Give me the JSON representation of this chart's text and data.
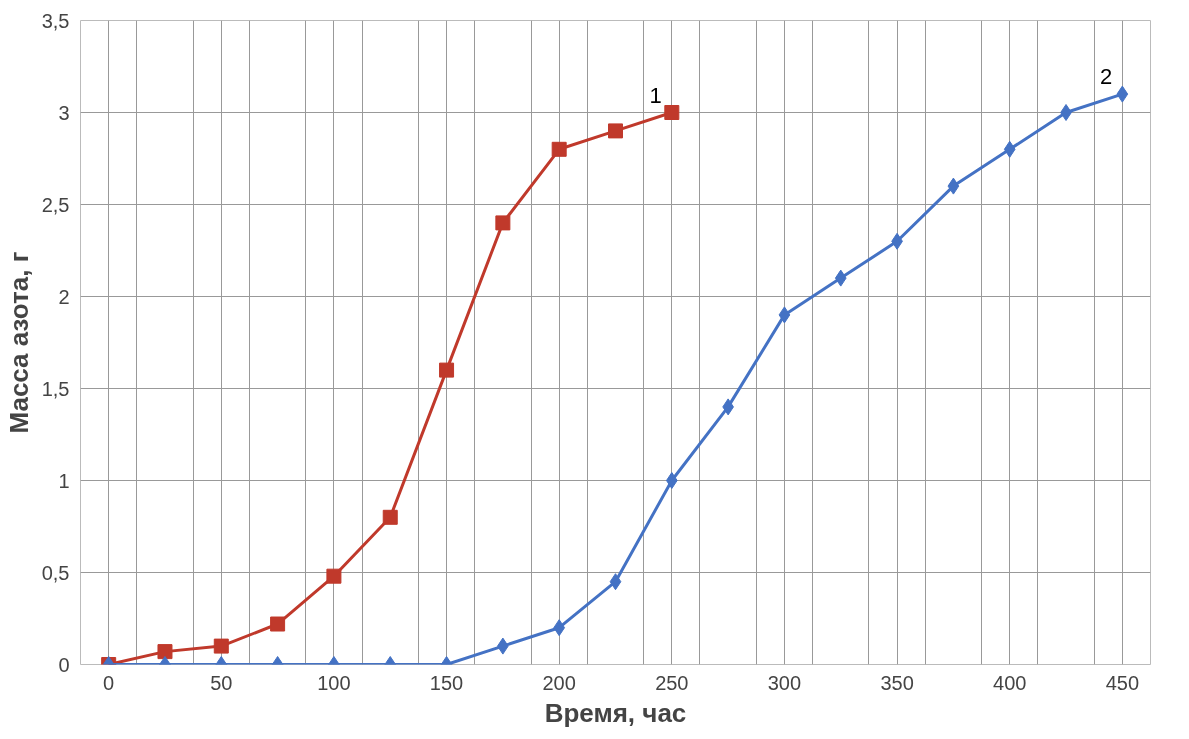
{
  "chart_data": {
    "type": "line",
    "xlabel": "Время, час",
    "ylabel": "Масса азота, г",
    "xlim": [
      -12.5,
      462.5
    ],
    "ylim": [
      0,
      3.5
    ],
    "xticks": [
      0,
      50,
      100,
      150,
      200,
      250,
      300,
      350,
      400,
      450,
      {
        "value": -12.5,
        "label": null
      },
      {
        "value": 12.5,
        "label": null
      },
      {
        "value": 37.5,
        "label": null
      },
      {
        "value": 62.5,
        "label": null
      },
      {
        "value": 87.5,
        "label": null
      },
      {
        "value": 112.5,
        "label": null
      },
      {
        "value": 137.5,
        "label": null
      },
      {
        "value": 162.5,
        "label": null
      },
      {
        "value": 187.5,
        "label": null
      },
      {
        "value": 212.5,
        "label": null
      },
      {
        "value": 237.5,
        "label": null
      },
      {
        "value": 262.5,
        "label": null
      },
      {
        "value": 287.5,
        "label": null
      },
      {
        "value": 312.5,
        "label": null
      },
      {
        "value": 337.5,
        "label": null
      },
      {
        "value": 362.5,
        "label": null
      },
      {
        "value": 387.5,
        "label": null
      },
      {
        "value": 412.5,
        "label": null
      },
      {
        "value": 437.5,
        "label": null
      },
      {
        "value": 462.5,
        "label": null
      }
    ],
    "yticks": [
      0,
      {
        "value": 0.5,
        "label": "0,5"
      },
      1,
      {
        "value": 1.5,
        "label": "1,5"
      },
      2,
      {
        "value": 2.5,
        "label": "2,5"
      },
      3,
      {
        "value": 3.5,
        "label": "3,5"
      }
    ],
    "grid": true,
    "series": [
      {
        "name": "1",
        "color": "#c0392b",
        "marker": "square",
        "x": [
          0,
          25,
          50,
          75,
          100,
          125,
          150,
          175,
          200,
          225,
          250
        ],
        "values": [
          0,
          0.07,
          0.1,
          0.22,
          0.48,
          0.8,
          1.6,
          2.4,
          2.8,
          2.9,
          3.0
        ]
      },
      {
        "name": "2",
        "color": "#4472c4",
        "marker": "diamond",
        "x": [
          0,
          25,
          50,
          75,
          100,
          125,
          150,
          175,
          200,
          225,
          250,
          275,
          300,
          325,
          350,
          375,
          400,
          425,
          450
        ],
        "values": [
          0,
          0,
          0,
          0,
          0,
          0,
          0,
          0.1,
          0.2,
          0.45,
          1.0,
          1.4,
          1.9,
          2.1,
          2.3,
          2.6,
          2.8,
          3.0,
          3.1
        ]
      }
    ]
  }
}
